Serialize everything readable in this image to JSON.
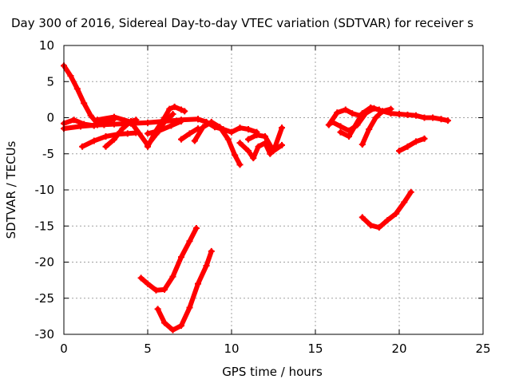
{
  "chart_data": {
    "type": "scatter",
    "title": "Day 300 of 2016, Sidereal Day-to-day VTEC variation (SDTVAR) for receiver s",
    "xlabel": "GPS time / hours",
    "ylabel": "SDTVAR / TECUs",
    "xlim": [
      0,
      25
    ],
    "ylim": [
      -30,
      10
    ],
    "xticks": [
      0,
      5,
      10,
      15,
      20,
      25
    ],
    "yticks": [
      10,
      5,
      0,
      -5,
      -10,
      -15,
      -20,
      -25,
      -30
    ],
    "grid": true,
    "series_color": "#ff0000",
    "series": [
      {
        "x": [
          0.0,
          0.4,
          0.8,
          1.2,
          1.6,
          2.0,
          2.4
        ],
        "y": [
          7.2,
          5.8,
          4.0,
          2.0,
          0.3,
          -0.8,
          -1.0
        ]
      },
      {
        "x": [
          0.0,
          1.0,
          2.0,
          3.0,
          4.0,
          5.0,
          6.0,
          7.0,
          8.0
        ],
        "y": [
          -1.5,
          -1.2,
          -1.0,
          -0.9,
          -0.8,
          -0.7,
          -0.5,
          -0.3,
          -0.2
        ]
      },
      {
        "x": [
          0.0,
          0.6,
          1.2,
          1.8,
          2.4,
          3.0
        ],
        "y": [
          -0.8,
          -0.3,
          -0.9,
          -1.1,
          -0.6,
          -0.2
        ]
      },
      {
        "x": [
          1.1,
          1.8,
          2.5,
          3.2,
          3.8,
          4.3
        ],
        "y": [
          -4.0,
          -3.2,
          -2.6,
          -2.3,
          -2.2,
          -2.1
        ]
      },
      {
        "x": [
          2.5,
          3.0,
          3.5,
          4.0,
          4.3
        ],
        "y": [
          -4.0,
          -3.0,
          -1.5,
          -0.5,
          -0.3
        ]
      },
      {
        "x": [
          2.0,
          3.0,
          4.0,
          4.5,
          5.0,
          5.5,
          6.0,
          6.5
        ],
        "y": [
          -0.3,
          0.1,
          -0.6,
          -2.2,
          -3.8,
          -2.3,
          -0.6,
          0.5
        ]
      },
      {
        "x": [
          5.0,
          5.5,
          6.0,
          6.3,
          6.6,
          7.0,
          7.2
        ],
        "y": [
          -4.0,
          -1.8,
          0.0,
          1.2,
          1.5,
          1.1,
          0.9
        ]
      },
      {
        "x": [
          5.0,
          5.7,
          6.4,
          7.0
        ],
        "y": [
          -2.2,
          -1.8,
          -1.1,
          -0.5
        ]
      },
      {
        "x": [
          7.0,
          7.5,
          8.0
        ],
        "y": [
          -3.0,
          -2.2,
          -1.5
        ]
      },
      {
        "x": [
          7.8,
          8.3,
          8.8,
          9.3,
          9.8,
          10.2,
          10.5
        ],
        "y": [
          -3.2,
          -1.3,
          -0.6,
          -1.3,
          -3.0,
          -5.2,
          -6.5
        ]
      },
      {
        "x": [
          8.0,
          8.5,
          9.0,
          9.5,
          10.0,
          10.5,
          11.0,
          11.5
        ],
        "y": [
          -0.2,
          -0.6,
          -1.3,
          -1.6,
          -2.0,
          -1.4,
          -1.6,
          -2.0
        ]
      },
      {
        "x": [
          10.5,
          11.0,
          11.3,
          11.6,
          12.0,
          12.3,
          12.6,
          13.0
        ],
        "y": [
          -3.5,
          -4.6,
          -5.6,
          -4.0,
          -3.5,
          -5.0,
          -4.0,
          -1.4
        ]
      },
      {
        "x": [
          11.0,
          11.5,
          12.0,
          12.5,
          13.0
        ],
        "y": [
          -3.0,
          -2.4,
          -2.6,
          -4.6,
          -3.8
        ]
      },
      {
        "x": [
          15.8,
          16.3,
          16.8,
          17.2,
          17.8
        ],
        "y": [
          -1.0,
          0.7,
          1.1,
          0.6,
          0.2
        ]
      },
      {
        "x": [
          16.0,
          16.5,
          17.0,
          17.5,
          18.0,
          18.5,
          19.0,
          19.5,
          20.0,
          20.5,
          21.0,
          21.5,
          22.0,
          22.5,
          22.9
        ],
        "y": [
          -0.6,
          -1.2,
          -1.8,
          -1.0,
          0.6,
          1.3,
          0.9,
          0.6,
          0.5,
          0.4,
          0.3,
          0.0,
          0.0,
          -0.2,
          -0.4
        ]
      },
      {
        "x": [
          16.5,
          17.0,
          17.3,
          17.8,
          18.3,
          18.8
        ],
        "y": [
          -2.0,
          -2.6,
          -1.4,
          0.6,
          1.4,
          1.1
        ]
      },
      {
        "x": [
          17.8,
          18.2,
          18.6,
          19.0,
          19.5
        ],
        "y": [
          -3.7,
          -1.6,
          0.0,
          0.9,
          1.2
        ]
      },
      {
        "x": [
          20.0,
          20.5,
          21.0,
          21.5
        ],
        "y": [
          -4.6,
          -4.0,
          -3.3,
          -2.9
        ]
      },
      {
        "x": [
          17.8,
          18.3,
          18.8,
          19.3,
          19.8,
          20.3,
          20.7
        ],
        "y": [
          -13.8,
          -14.9,
          -15.2,
          -14.2,
          -13.3,
          -11.7,
          -10.3
        ]
      },
      {
        "x": [
          4.6,
          5.0,
          5.5,
          6.0,
          6.5,
          7.0,
          7.5,
          7.9
        ],
        "y": [
          -22.2,
          -23.0,
          -23.9,
          -23.8,
          -22.0,
          -19.3,
          -17.1,
          -15.3
        ]
      },
      {
        "x": [
          5.6,
          6.0,
          6.5,
          7.0,
          7.5,
          8.0,
          8.5,
          8.8
        ],
        "y": [
          -26.5,
          -28.4,
          -29.4,
          -28.8,
          -26.3,
          -23.0,
          -20.5,
          -18.5
        ]
      }
    ]
  }
}
